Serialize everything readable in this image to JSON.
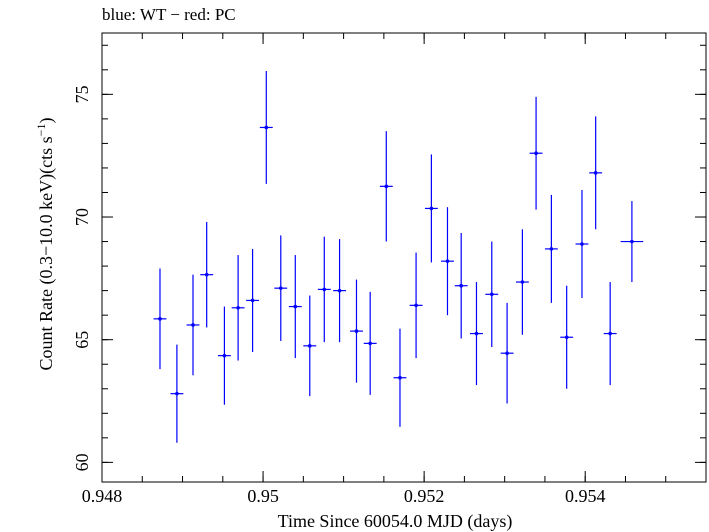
{
  "header": {
    "title": "blue: WT − red: PC"
  },
  "chart_data": {
    "type": "scatter",
    "title": "blue: WT − red: PC",
    "xlabel": "Time Since 60054.0 MJD (days)",
    "ylabel_main": "Count Rate (0.3−10.0 keV)(cts s",
    "ylabel_sup": "−1",
    "ylabel_end": ")",
    "xlim": [
      0.948,
      0.9555
    ],
    "ylim": [
      59.2,
      77.5
    ],
    "xticks": [
      {
        "value": 0.948,
        "label": "0.948"
      },
      {
        "value": 0.95,
        "label": "0.95"
      },
      {
        "value": 0.952,
        "label": "0.952"
      },
      {
        "value": 0.954,
        "label": "0.954"
      }
    ],
    "yticks": [
      {
        "value": 60,
        "label": "60"
      },
      {
        "value": 65,
        "label": "65"
      },
      {
        "value": 70,
        "label": "70"
      },
      {
        "value": 75,
        "label": "75"
      }
    ],
    "x_minor_step": 0.0005,
    "y_minor_step": 1,
    "series": [
      {
        "name": "WT",
        "color": "#0000ff",
        "points": [
          {
            "x": 0.94872,
            "y": 65.85,
            "xerr": 8e-05,
            "yerr": 2.05
          },
          {
            "x": 0.94893,
            "y": 62.8,
            "xerr": 8e-05,
            "yerr": 2.0
          },
          {
            "x": 0.94913,
            "y": 65.6,
            "xerr": 8e-05,
            "yerr": 2.05
          },
          {
            "x": 0.9493,
            "y": 67.65,
            "xerr": 8e-05,
            "yerr": 2.15
          },
          {
            "x": 0.94952,
            "y": 64.35,
            "xerr": 8e-05,
            "yerr": 2.0
          },
          {
            "x": 0.94969,
            "y": 66.3,
            "xerr": 8e-05,
            "yerr": 2.15
          },
          {
            "x": 0.94987,
            "y": 66.6,
            "xerr": 8e-05,
            "yerr": 2.1
          },
          {
            "x": 0.95004,
            "y": 73.65,
            "xerr": 8e-05,
            "yerr": 2.3
          },
          {
            "x": 0.95022,
            "y": 67.1,
            "xerr": 8e-05,
            "yerr": 2.15
          },
          {
            "x": 0.9504,
            "y": 66.35,
            "xerr": 8e-05,
            "yerr": 2.1
          },
          {
            "x": 0.95058,
            "y": 64.75,
            "xerr": 8e-05,
            "yerr": 2.05
          },
          {
            "x": 0.95076,
            "y": 67.05,
            "xerr": 8e-05,
            "yerr": 2.15
          },
          {
            "x": 0.95095,
            "y": 67.0,
            "xerr": 8e-05,
            "yerr": 2.1
          },
          {
            "x": 0.95116,
            "y": 65.35,
            "xerr": 8e-05,
            "yerr": 2.1
          },
          {
            "x": 0.95133,
            "y": 64.85,
            "xerr": 8e-05,
            "yerr": 2.1
          },
          {
            "x": 0.95153,
            "y": 71.25,
            "xerr": 8e-05,
            "yerr": 2.25
          },
          {
            "x": 0.9517,
            "y": 63.45,
            "xerr": 8e-05,
            "yerr": 2.0
          },
          {
            "x": 0.9519,
            "y": 66.4,
            "xerr": 8e-05,
            "yerr": 2.15
          },
          {
            "x": 0.95209,
            "y": 70.35,
            "xerr": 8e-05,
            "yerr": 2.2
          },
          {
            "x": 0.95229,
            "y": 68.2,
            "xerr": 8e-05,
            "yerr": 2.2
          },
          {
            "x": 0.95246,
            "y": 67.2,
            "xerr": 8e-05,
            "yerr": 2.15
          },
          {
            "x": 0.95265,
            "y": 65.25,
            "xerr": 8e-05,
            "yerr": 2.1
          },
          {
            "x": 0.95284,
            "y": 66.85,
            "xerr": 8e-05,
            "yerr": 2.15
          },
          {
            "x": 0.95303,
            "y": 64.45,
            "xerr": 8e-05,
            "yerr": 2.05
          },
          {
            "x": 0.95322,
            "y": 67.35,
            "xerr": 8e-05,
            "yerr": 2.15
          },
          {
            "x": 0.95339,
            "y": 72.6,
            "xerr": 8e-05,
            "yerr": 2.3
          },
          {
            "x": 0.95358,
            "y": 68.7,
            "xerr": 8e-05,
            "yerr": 2.2
          },
          {
            "x": 0.95377,
            "y": 65.1,
            "xerr": 8e-05,
            "yerr": 2.1
          },
          {
            "x": 0.95396,
            "y": 68.9,
            "xerr": 8e-05,
            "yerr": 2.2
          },
          {
            "x": 0.95413,
            "y": 71.8,
            "xerr": 8e-05,
            "yerr": 2.3
          },
          {
            "x": 0.95431,
            "y": 65.25,
            "xerr": 8e-05,
            "yerr": 2.1
          },
          {
            "x": 0.95458,
            "y": 69.0,
            "xerr": 0.00014,
            "yerr": 1.65
          }
        ]
      }
    ]
  }
}
